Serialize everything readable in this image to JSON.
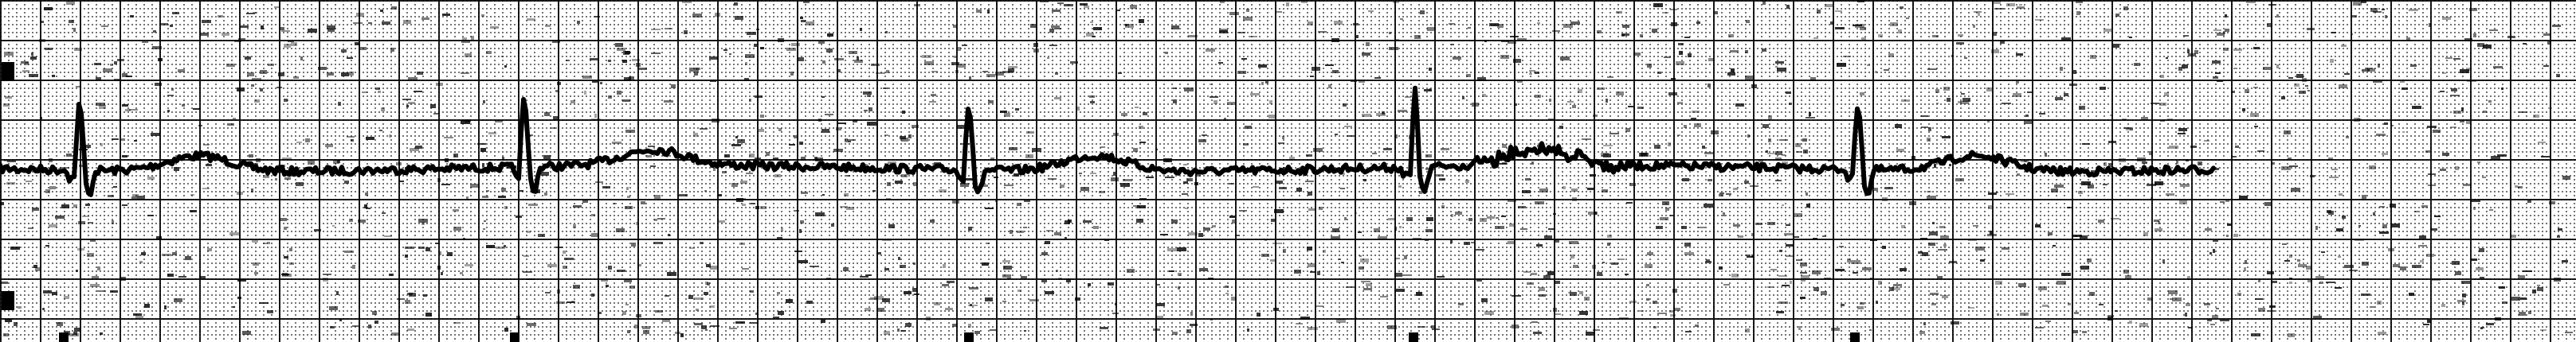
{
  "image": {
    "subject": "ecg-rhythm-strip",
    "paper_color": "#ffffff",
    "grid_color": "#000000",
    "trace_color": "#000000",
    "marker_color": "#000000"
  }
}
